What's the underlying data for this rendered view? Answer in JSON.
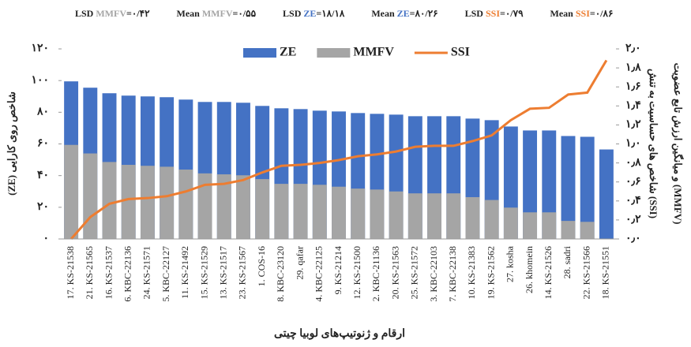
{
  "chart_data": {
    "type": "bar",
    "header_stats": [
      {
        "stat": "LSD",
        "series": "MMFV",
        "value": "=۰/۴۲"
      },
      {
        "stat": "Mean",
        "series": "MMFV",
        "value": "=۰/۵۵"
      },
      {
        "stat": "LSD",
        "series": "ZE",
        "value": "=۱۸/۱۸"
      },
      {
        "stat": "Mean",
        "series": "ZE",
        "value": "=۸۰/۲۶"
      },
      {
        "stat": "LSD",
        "series": "SSI",
        "value": "=۰/۷۹"
      },
      {
        "stat": "Mean",
        "series": "SSI",
        "value": "=۰/۸۶"
      }
    ],
    "x_label": "ارقام و ژنوتیپ‌های لوبیا چیتی",
    "y_label": "(ZE) شاخص روی کارایی",
    "y2_label": [
      "شاخص های حساسیت به تنش (SSI)",
      "و میانگین ارزش تابع عضویت (MMFV)"
    ],
    "categories": [
      "17. KS-21538",
      "21. KS-21565",
      "16. KS-21537",
      "6. KBC-22136",
      "24. KS-21571",
      "5. KBC-22127",
      "11. KS-21492",
      "15. KS-21529",
      "13. KS-21517",
      "23. KS-21567",
      "1. COS-16",
      "8. KBC-23120",
      "29. qafar",
      "4. KBC-22125",
      "9. KS-21214",
      "12. KS-21500",
      "2. KBC-21136",
      "20. KS-21563",
      "25. KS-21572",
      "3. KBC-22103",
      "7. KBC-22138",
      "10. KS-21383",
      "19. KS-21562",
      "27. kosha",
      "26. khomein",
      "14. KS-21526",
      "28. sadri",
      "22. KS-21566",
      "18. KS-21551"
    ],
    "series": [
      {
        "name": "ZE",
        "color": "#4472c4",
        "kind": "bar",
        "axis": "y",
        "values": [
          99.5,
          95.5,
          92,
          90.5,
          90,
          89.5,
          88,
          86.5,
          86.5,
          86,
          84,
          82.5,
          82,
          81,
          80.5,
          79.5,
          79,
          78.5,
          77.5,
          77.5,
          77.5,
          76,
          75,
          71,
          68.5,
          68.5,
          65,
          64.5,
          56.5
        ]
      },
      {
        "name": "MMFV",
        "color": "#a5a5a5",
        "kind": "bar",
        "axis": "y2",
        "values": [
          0.99,
          0.9,
          0.81,
          0.78,
          0.77,
          0.76,
          0.73,
          0.69,
          0.68,
          0.67,
          0.63,
          0.58,
          0.58,
          0.57,
          0.55,
          0.53,
          0.52,
          0.5,
          0.48,
          0.48,
          0.48,
          0.44,
          0.41,
          0.33,
          0.28,
          0.28,
          0.19,
          0.18,
          0.0
        ]
      },
      {
        "name": "SSI",
        "color": "#ed7d31",
        "kind": "line",
        "axis": "y2",
        "values": [
          0.0,
          0.23,
          0.37,
          0.42,
          0.43,
          0.45,
          0.5,
          0.57,
          0.58,
          0.62,
          0.7,
          0.77,
          0.78,
          0.8,
          0.83,
          0.87,
          0.89,
          0.92,
          0.97,
          0.98,
          0.98,
          1.03,
          1.09,
          1.25,
          1.37,
          1.38,
          1.52,
          1.54,
          1.88
        ]
      }
    ],
    "ylim": [
      0,
      120
    ],
    "yticks": [
      {
        "value": 0,
        "label": "۰"
      },
      {
        "value": 20,
        "label": "۲۰"
      },
      {
        "value": 40,
        "label": "۴۰"
      },
      {
        "value": 60,
        "label": "۶۰"
      },
      {
        "value": 80,
        "label": "۸۰"
      },
      {
        "value": 100,
        "label": "۱۰۰"
      },
      {
        "value": 120,
        "label": "۱۲۰"
      }
    ],
    "y2lim": [
      0,
      2
    ],
    "y2ticks": [
      {
        "value": 0,
        "label": "۰٫۰"
      },
      {
        "value": 0.2,
        "label": "۰٫۲"
      },
      {
        "value": 0.4,
        "label": "۰٫۴"
      },
      {
        "value": 0.6,
        "label": "۰٫۶"
      },
      {
        "value": 0.8,
        "label": "۰٫۸"
      },
      {
        "value": 1.0,
        "label": "۱٫۰"
      },
      {
        "value": 1.2,
        "label": "۱٫۲"
      },
      {
        "value": 1.4,
        "label": "۱٫۴"
      },
      {
        "value": 1.6,
        "label": "۱٫۶"
      },
      {
        "value": 1.8,
        "label": "۱٫۸"
      },
      {
        "value": 2.0,
        "label": "۲٫۰"
      }
    ],
    "legend": "top"
  }
}
